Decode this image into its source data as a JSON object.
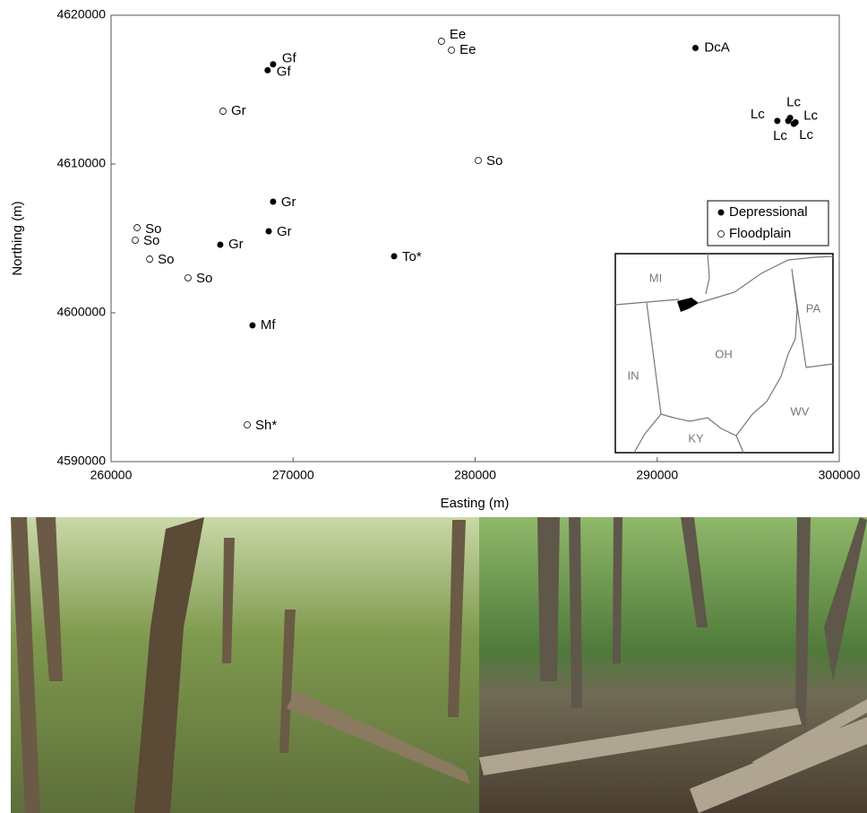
{
  "chart_data": {
    "type": "scatter",
    "x_label": "Easting (m)",
    "y_label": "Northing (m)",
    "xlim": [
      260000,
      300000
    ],
    "xticks": [
      260000,
      270000,
      280000,
      290000,
      300000
    ],
    "ylim": [
      4590000,
      4620000
    ],
    "yticks": [
      4590000,
      4600000,
      4610000,
      4620000
    ],
    "series": [
      {
        "name": "Depressional",
        "color": "#000000",
        "filled": true,
        "x": [
          292100,
          268900,
          268600,
          296600,
          297300,
          297600,
          297200,
          297500,
          268900,
          268660,
          266000,
          275550,
          267770
        ],
        "values": [
          4617800,
          4616700,
          4616300,
          4612900,
          4613100,
          4612800,
          4612900,
          4612700,
          4607470,
          4605480,
          4604580,
          4603800,
          4599160
        ],
        "labels": [
          "DcA",
          "Gf",
          "Gf",
          "Lc",
          "Lc",
          "Lc",
          "Lc",
          "Lc",
          "Gr",
          "Gr",
          "Gr",
          "To*",
          "Mf"
        ]
      },
      {
        "name": "Floodplain",
        "color": "#000000",
        "filled": false,
        "x": [
          278150,
          278700,
          266150,
          280170,
          261430,
          261330,
          262120,
          264230,
          267480
        ],
        "values": [
          4618250,
          4617650,
          4613550,
          4610240,
          4605720,
          4604880,
          4603610,
          4602350,
          4592470
        ],
        "labels": [
          "Ee",
          "Ee",
          "Gr",
          "So",
          "So",
          "So",
          "So",
          "So",
          "Sh*"
        ]
      }
    ]
  },
  "map": {
    "labels": [
      "MI",
      "OH",
      "PA",
      "IN",
      "WV",
      "KY"
    ]
  }
}
